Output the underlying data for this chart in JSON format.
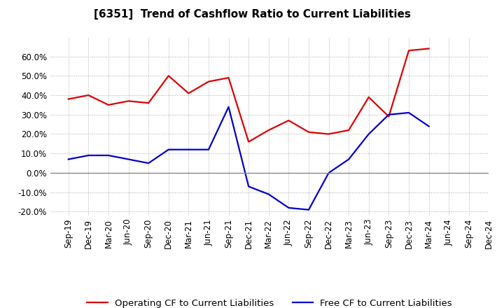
{
  "title": "[6351]  Trend of Cashflow Ratio to Current Liabilities",
  "x_labels": [
    "Sep-19",
    "Dec-19",
    "Mar-20",
    "Jun-20",
    "Sep-20",
    "Dec-20",
    "Mar-21",
    "Jun-21",
    "Sep-21",
    "Dec-21",
    "Mar-22",
    "Jun-22",
    "Sep-22",
    "Dec-22",
    "Mar-23",
    "Jun-23",
    "Sep-23",
    "Dec-23",
    "Mar-24",
    "Jun-24",
    "Sep-24",
    "Dec-24"
  ],
  "operating_cf": [
    0.38,
    0.4,
    0.35,
    0.37,
    0.36,
    0.5,
    0.41,
    0.47,
    0.49,
    0.16,
    0.22,
    0.27,
    0.21,
    0.2,
    0.22,
    0.39,
    0.29,
    0.63,
    0.64,
    null,
    null,
    null
  ],
  "free_cf": [
    0.07,
    0.09,
    0.09,
    0.07,
    0.05,
    0.12,
    0.12,
    0.12,
    0.34,
    -0.07,
    -0.11,
    -0.18,
    -0.19,
    0.0,
    0.07,
    0.2,
    0.3,
    0.31,
    0.24,
    null,
    null,
    null
  ],
  "operating_cf_color": "#dd0000",
  "free_cf_color": "#0000cc",
  "ylim": [
    -0.22,
    0.7
  ],
  "yticks": [
    -0.2,
    -0.1,
    0.0,
    0.1,
    0.2,
    0.3,
    0.4,
    0.5,
    0.6
  ],
  "legend_operating": "Operating CF to Current Liabilities",
  "legend_free": "Free CF to Current Liabilities",
  "background_color": "#ffffff",
  "plot_bg_color": "#ffffff",
  "grid_color": "#aaaaaa",
  "title_fontsize": 11,
  "axis_fontsize": 8.5,
  "legend_fontsize": 9.5
}
